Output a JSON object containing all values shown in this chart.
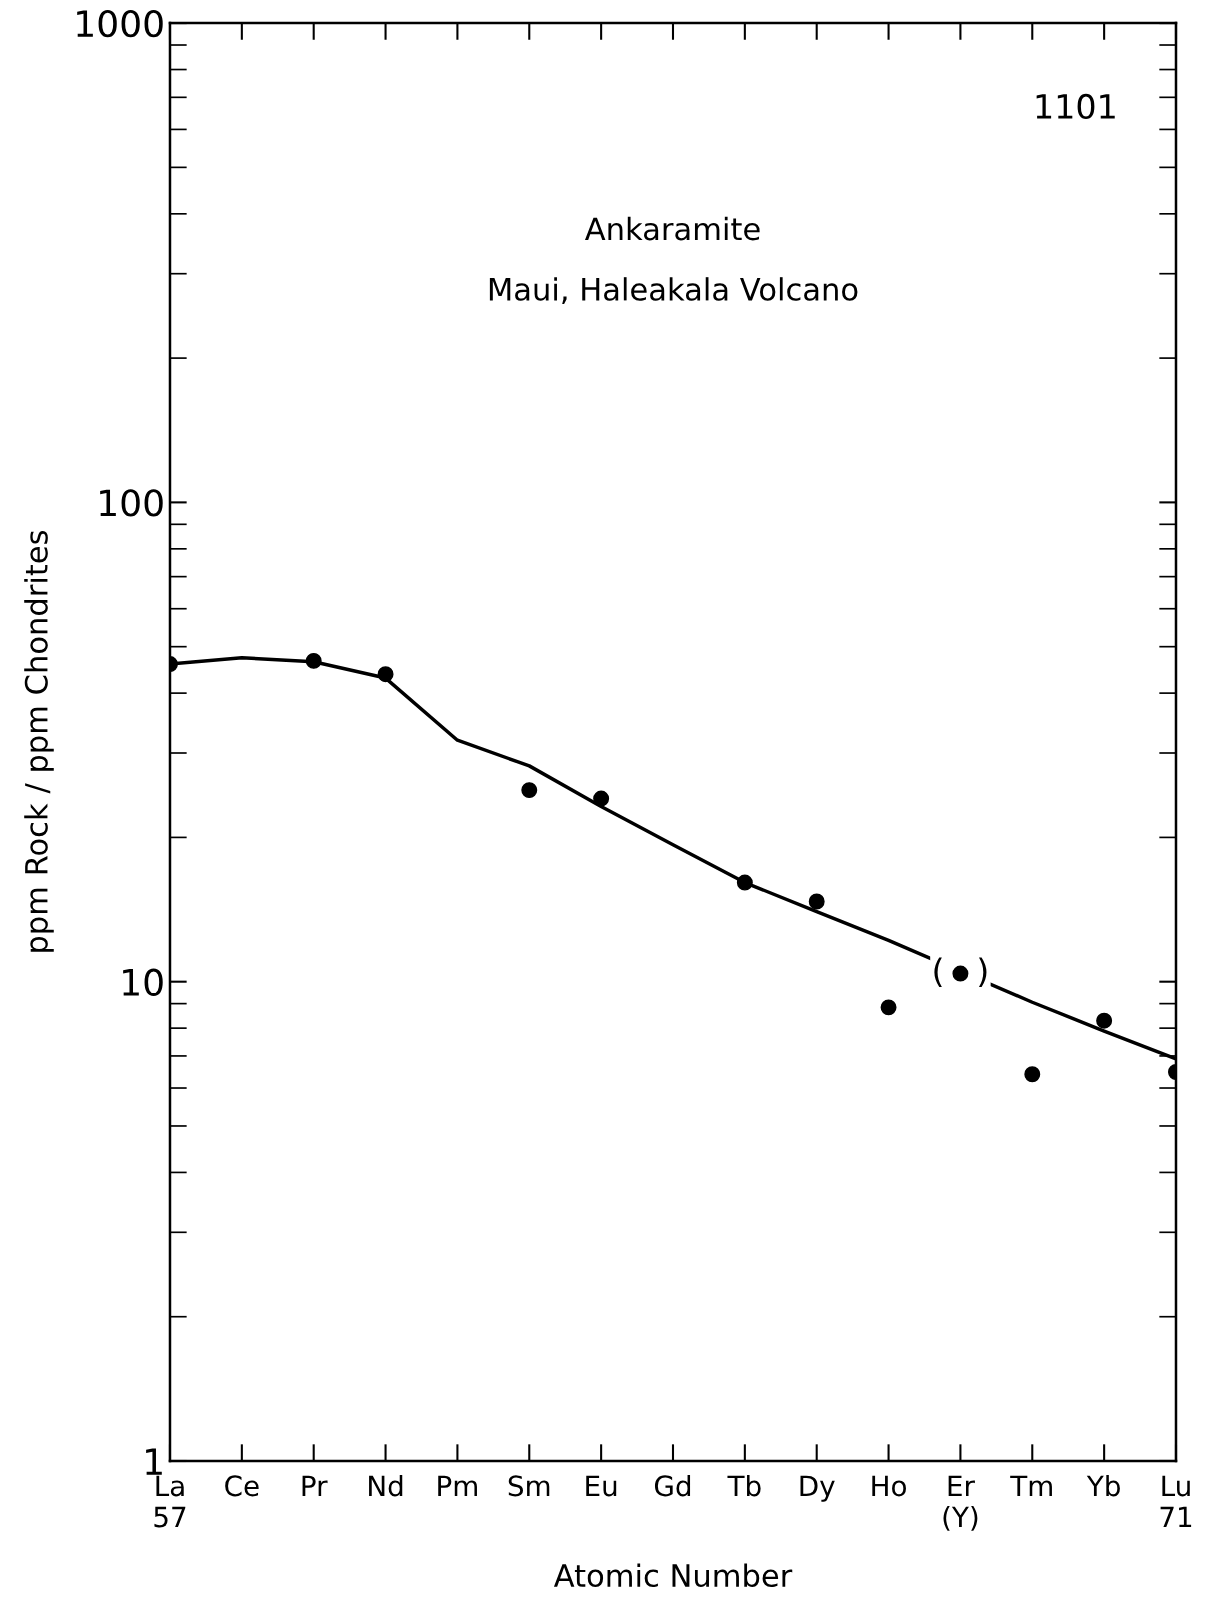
{
  "chart_data": {
    "type": "scatter",
    "title": "Ankaramite",
    "subtitle": "Maui, Haleakala Volcano",
    "xlabel": "Atomic Number",
    "ylabel": "ppm Rock / ppm Chondrites",
    "annotations": [
      "1101",
      {
        "text": "(   )",
        "x": "Er\n(Y)",
        "y": 10.4
      }
    ],
    "categories": [
      "La\n57",
      "Ce",
      "Pr",
      "Nd",
      "Pm",
      "Sm",
      "Eu",
      "Gd",
      "Tb",
      "Dy",
      "Ho",
      "Er\n(Y)",
      "Tm",
      "Yb",
      "Lu\n71"
    ],
    "series": [
      {
        "color": "#000000",
        "marker": "circle",
        "values": [
          46.0,
          null,
          46.7,
          43.8,
          null,
          25.1,
          24.1,
          null,
          16.1,
          14.7,
          8.84,
          10.4,
          6.41,
          8.29,
          6.48
        ]
      },
      {
        "type": "line",
        "color": "#000000",
        "line_style": "solid",
        "marker": "none",
        "values": [
          46.0,
          47.4,
          46.5,
          43.0,
          31.9,
          28.2,
          23.2,
          19.3,
          16.1,
          14.0,
          12.2,
          null,
          9.06,
          7.89,
          6.9
        ]
      }
    ],
    "log": "y",
    "ylim": [
      1,
      1000
    ],
    "yticks": [
      1,
      10,
      100,
      1000
    ],
    "grid": false,
    "legend": false
  }
}
